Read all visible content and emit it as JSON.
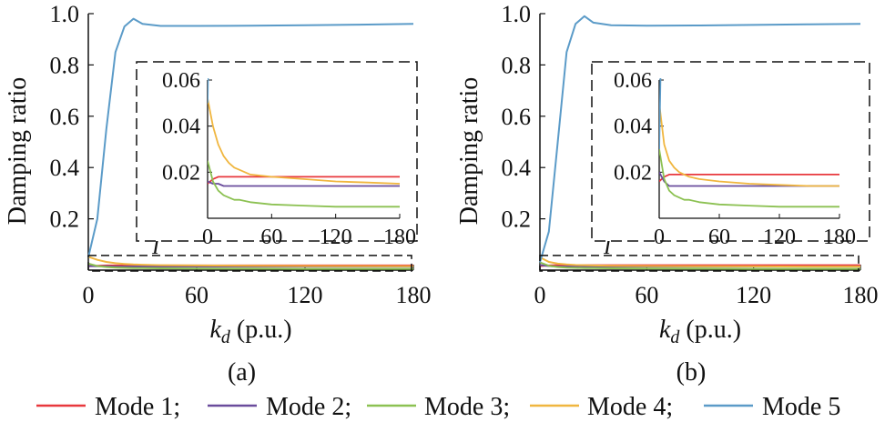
{
  "legend": [
    {
      "label": "Mode 1;",
      "color": "#e8383d"
    },
    {
      "label": "Mode 2;",
      "color": "#6a4c9c"
    },
    {
      "label": "Mode 3;",
      "color": "#8cc152"
    },
    {
      "label": "Mode 4;",
      "color": "#f0b63f"
    },
    {
      "label": "Mode 5",
      "color": "#5b9bc8"
    }
  ],
  "chart_data": [
    {
      "type": "line",
      "panel_label": "(a)",
      "ylabel": "Damping ratio",
      "xlabel_main": "k",
      "xlabel_sub": "d",
      "xlabel_unit": " (p.u.)",
      "xlim": [
        0,
        180
      ],
      "ylim": [
        0,
        1.0
      ],
      "xticks": [
        "0",
        "60",
        "120",
        "180"
      ],
      "yticks": [
        "0.2",
        "0.4",
        "0.6",
        "0.8",
        "1.0"
      ],
      "x": [
        0,
        5,
        10,
        15,
        20,
        25,
        30,
        40,
        60,
        90,
        120,
        150,
        180
      ],
      "series": [
        {
          "name": "Mode 1",
          "color": "#e8383d",
          "values": [
            0.015,
            0.017,
            0.018,
            0.018,
            0.018,
            0.018,
            0.018,
            0.018,
            0.018,
            0.018,
            0.018,
            0.018,
            0.018
          ]
        },
        {
          "name": "Mode 2",
          "color": "#6a4c9c",
          "values": [
            0.016,
            0.015,
            0.015,
            0.014,
            0.014,
            0.014,
            0.014,
            0.014,
            0.014,
            0.014,
            0.014,
            0.014,
            0.014
          ]
        },
        {
          "name": "Mode 3",
          "color": "#8cc152",
          "values": [
            0.025,
            0.016,
            0.012,
            0.01,
            0.009,
            0.008,
            0.008,
            0.007,
            0.006,
            0.0055,
            0.005,
            0.005,
            0.005
          ]
        },
        {
          "name": "Mode 4",
          "color": "#f0b63f",
          "values": [
            0.052,
            0.04,
            0.032,
            0.027,
            0.024,
            0.022,
            0.021,
            0.019,
            0.018,
            0.017,
            0.016,
            0.0155,
            0.015
          ]
        },
        {
          "name": "Mode 5",
          "color": "#5b9bc8",
          "values": [
            0.05,
            0.2,
            0.55,
            0.85,
            0.95,
            0.98,
            0.96,
            0.952,
            0.952,
            0.953,
            0.955,
            0.957,
            0.96
          ]
        }
      ],
      "inset": {
        "label": "I",
        "xlim": [
          0,
          180
        ],
        "ylim": [
          0,
          0.06
        ],
        "xticks": [
          "0",
          "60",
          "120",
          "180"
        ],
        "yticks": [
          "0.02",
          "0.04",
          "0.06"
        ],
        "zoom_box_y": [
          0,
          0.05
        ]
      }
    },
    {
      "type": "line",
      "panel_label": "(b)",
      "ylabel": "Damping ratio",
      "xlabel_main": "k",
      "xlabel_sub": "d",
      "xlabel_unit": " (p.u.)",
      "xlim": [
        0,
        180
      ],
      "ylim": [
        0,
        1.0
      ],
      "xticks": [
        "0",
        "60",
        "120",
        "180"
      ],
      "yticks": [
        "0.2",
        "0.4",
        "0.6",
        "0.8",
        "1.0"
      ],
      "x": [
        0,
        5,
        10,
        15,
        20,
        25,
        30,
        40,
        60,
        90,
        120,
        150,
        180
      ],
      "series": [
        {
          "name": "Mode 1",
          "color": "#e8383d",
          "values": [
            0.016,
            0.018,
            0.019,
            0.019,
            0.019,
            0.019,
            0.019,
            0.019,
            0.019,
            0.019,
            0.019,
            0.019,
            0.019
          ]
        },
        {
          "name": "Mode 2",
          "color": "#6a4c9c",
          "values": [
            0.02,
            0.016,
            0.014,
            0.014,
            0.014,
            0.014,
            0.014,
            0.014,
            0.014,
            0.014,
            0.014,
            0.014,
            0.014
          ]
        },
        {
          "name": "Mode 3",
          "color": "#8cc152",
          "values": [
            0.03,
            0.017,
            0.012,
            0.01,
            0.009,
            0.008,
            0.008,
            0.007,
            0.006,
            0.0055,
            0.005,
            0.005,
            0.005
          ]
        },
        {
          "name": "Mode 4",
          "color": "#f0b63f",
          "values": [
            0.05,
            0.032,
            0.025,
            0.022,
            0.02,
            0.019,
            0.018,
            0.017,
            0.016,
            0.015,
            0.0145,
            0.014,
            0.014
          ]
        },
        {
          "name": "Mode 5",
          "color": "#5b9bc8",
          "values": [
            0.03,
            0.15,
            0.5,
            0.85,
            0.96,
            0.99,
            0.965,
            0.955,
            0.953,
            0.954,
            0.956,
            0.958,
            0.96
          ]
        }
      ],
      "inset": {
        "label": "I",
        "xlim": [
          0,
          180
        ],
        "ylim": [
          0,
          0.06
        ],
        "xticks": [
          "0",
          "60",
          "120",
          "180"
        ],
        "yticks": [
          "0.02",
          "0.04",
          "0.06"
        ],
        "zoom_box_y": [
          0,
          0.05
        ]
      }
    }
  ]
}
